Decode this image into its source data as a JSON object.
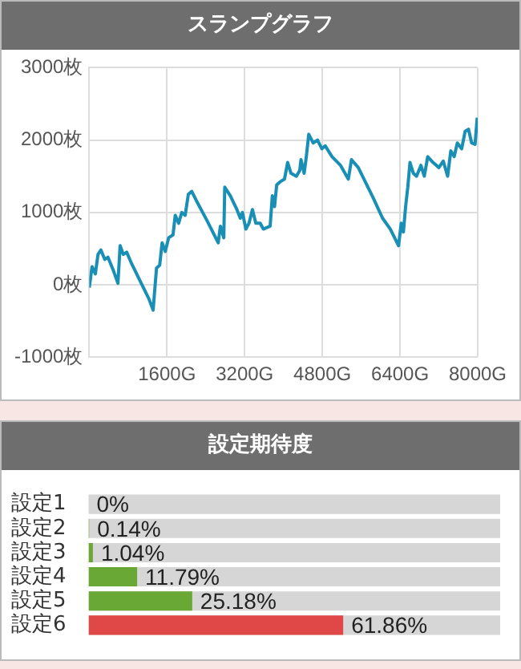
{
  "chart_data": [
    {
      "type": "line",
      "title": "スランプグラフ",
      "color": "#1a8fb5",
      "x": [
        0,
        57,
        125,
        180,
        240,
        320,
        385,
        500,
        590,
        635,
        700,
        770,
        860,
        1070,
        1225,
        1315,
        1340,
        1385,
        1450,
        1500,
        1565,
        1635,
        1725,
        1770,
        1840,
        1905,
        1975,
        2040,
        2110,
        2200,
        2430,
        2655,
        2700,
        2770,
        2790,
        2905,
        3040,
        3110,
        3155,
        3225,
        3290,
        3360,
        3430,
        3520,
        3585,
        3725,
        3770,
        3815,
        3860,
        3925,
        4020,
        4085,
        4155,
        4265,
        4335,
        4360,
        4425,
        4470,
        4520,
        4610,
        4700,
        4790,
        4860,
        5000,
        5175,
        5335,
        5400,
        5540,
        5855,
        6040,
        6200,
        6370,
        6425,
        6470,
        6515,
        6560,
        6605,
        6675,
        6740,
        6830,
        6900,
        6970,
        7080,
        7200,
        7290,
        7380,
        7445,
        7515,
        7580,
        7670,
        7740,
        7810,
        7875,
        7945,
        7990
      ],
      "values": [
        -40,
        250,
        150,
        420,
        480,
        350,
        380,
        190,
        20,
        540,
        420,
        450,
        310,
        20,
        -190,
        -350,
        -140,
        230,
        270,
        580,
        460,
        650,
        690,
        960,
        850,
        1000,
        960,
        1250,
        1290,
        1170,
        880,
        580,
        810,
        650,
        1350,
        1230,
        1040,
        920,
        1000,
        770,
        850,
        1040,
        850,
        850,
        770,
        810,
        1230,
        1080,
        1380,
        1420,
        1460,
        1690,
        1540,
        1500,
        1580,
        1730,
        1540,
        1770,
        2080,
        1960,
        2000,
        1880,
        1920,
        1770,
        1650,
        1460,
        1730,
        1620,
        1190,
        920,
        770,
        540,
        850,
        730,
        1080,
        1350,
        1690,
        1540,
        1500,
        1650,
        1500,
        1770,
        1690,
        1620,
        1710,
        1500,
        1850,
        1770,
        1960,
        1880,
        2120,
        2150,
        1960,
        1940,
        2310
      ],
      "xlim": [
        0,
        8000
      ],
      "xticks": [
        {
          "value": 0,
          "label": null
        },
        {
          "value": 1600,
          "label": "1600G"
        },
        {
          "value": 3200,
          "label": "3200G"
        },
        {
          "value": 4800,
          "label": "4800G"
        },
        {
          "value": 6400,
          "label": "6400G"
        },
        {
          "value": 8000,
          "label": "8000G"
        }
      ],
      "ylim": [
        -1000,
        3000
      ],
      "yticks": [
        {
          "value": -1000,
          "label": "-1000枚"
        },
        {
          "value": 0,
          "label": "0枚"
        },
        {
          "value": 1000,
          "label": "1000枚"
        },
        {
          "value": 2000,
          "label": "2000枚"
        },
        {
          "value": 3000,
          "label": "3000枚"
        }
      ],
      "grid": true
    },
    {
      "type": "bar",
      "orientation": "horizontal",
      "title": "設定期待度",
      "categories": [
        "設定1",
        "設定2",
        "設定3",
        "設定4",
        "設定5",
        "設定6"
      ],
      "values": [
        0,
        0.14,
        1.04,
        11.79,
        25.18,
        61.86
      ],
      "colors": [
        "#6aa835",
        "#6aa835",
        "#6aa835",
        "#6aa835",
        "#6aa835",
        "#e04848"
      ],
      "value_labels": [
        "0%",
        "0.14%",
        "1.04%",
        "11.79%",
        "25.18%",
        "61.86%"
      ],
      "xlim": [
        0,
        100
      ],
      "tick_labels": "y"
    }
  ]
}
